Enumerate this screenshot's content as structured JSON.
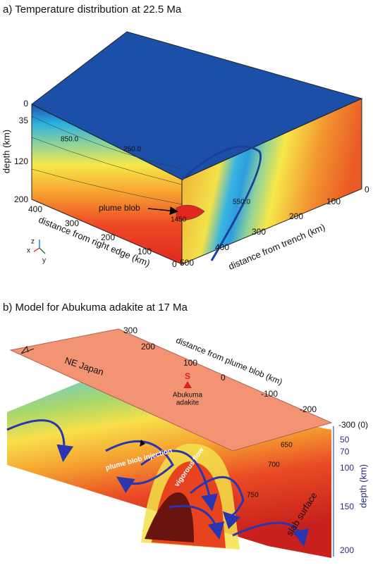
{
  "panel_a": {
    "title": "a) Temperature distribution at 22.5 Ma",
    "depth_axis": {
      "label": "depth (km)",
      "ticks": [
        "0",
        "35",
        "120",
        "200"
      ]
    },
    "right_edge_axis": {
      "label": "distance from right edge (km)",
      "ticks": [
        "400",
        "300",
        "200",
        "100",
        "0"
      ]
    },
    "trench_axis": {
      "label": "distance from trench (km)",
      "ticks": [
        "500",
        "400",
        "300",
        "200",
        "100",
        "0"
      ]
    },
    "contours": [
      "850.0",
      "250.0",
      "550.0",
      "1450"
    ],
    "annotation": "plume blob",
    "triad": [
      "z",
      "x",
      "y"
    ]
  },
  "panel_b": {
    "title": "b) Model for Abukuma adakite at 17 Ma",
    "plane_label": "NE Japan",
    "distance_axis": {
      "label": "distance from plume blob (km)",
      "ticks": [
        "300",
        "200",
        "100",
        "0",
        "-100",
        "-200",
        "-300 (0)"
      ]
    },
    "station": {
      "symbol": "S",
      "label": [
        "Abukuma",
        "adakite"
      ]
    },
    "flow_labels": [
      "plume blob injection",
      "vigorous flow"
    ],
    "contours": [
      "650",
      "700",
      "750"
    ],
    "surface_label": "slab surface",
    "depth_axis": {
      "label": "depth (km)",
      "ticks": [
        "50",
        "70",
        "100",
        "150",
        "200"
      ]
    }
  }
}
